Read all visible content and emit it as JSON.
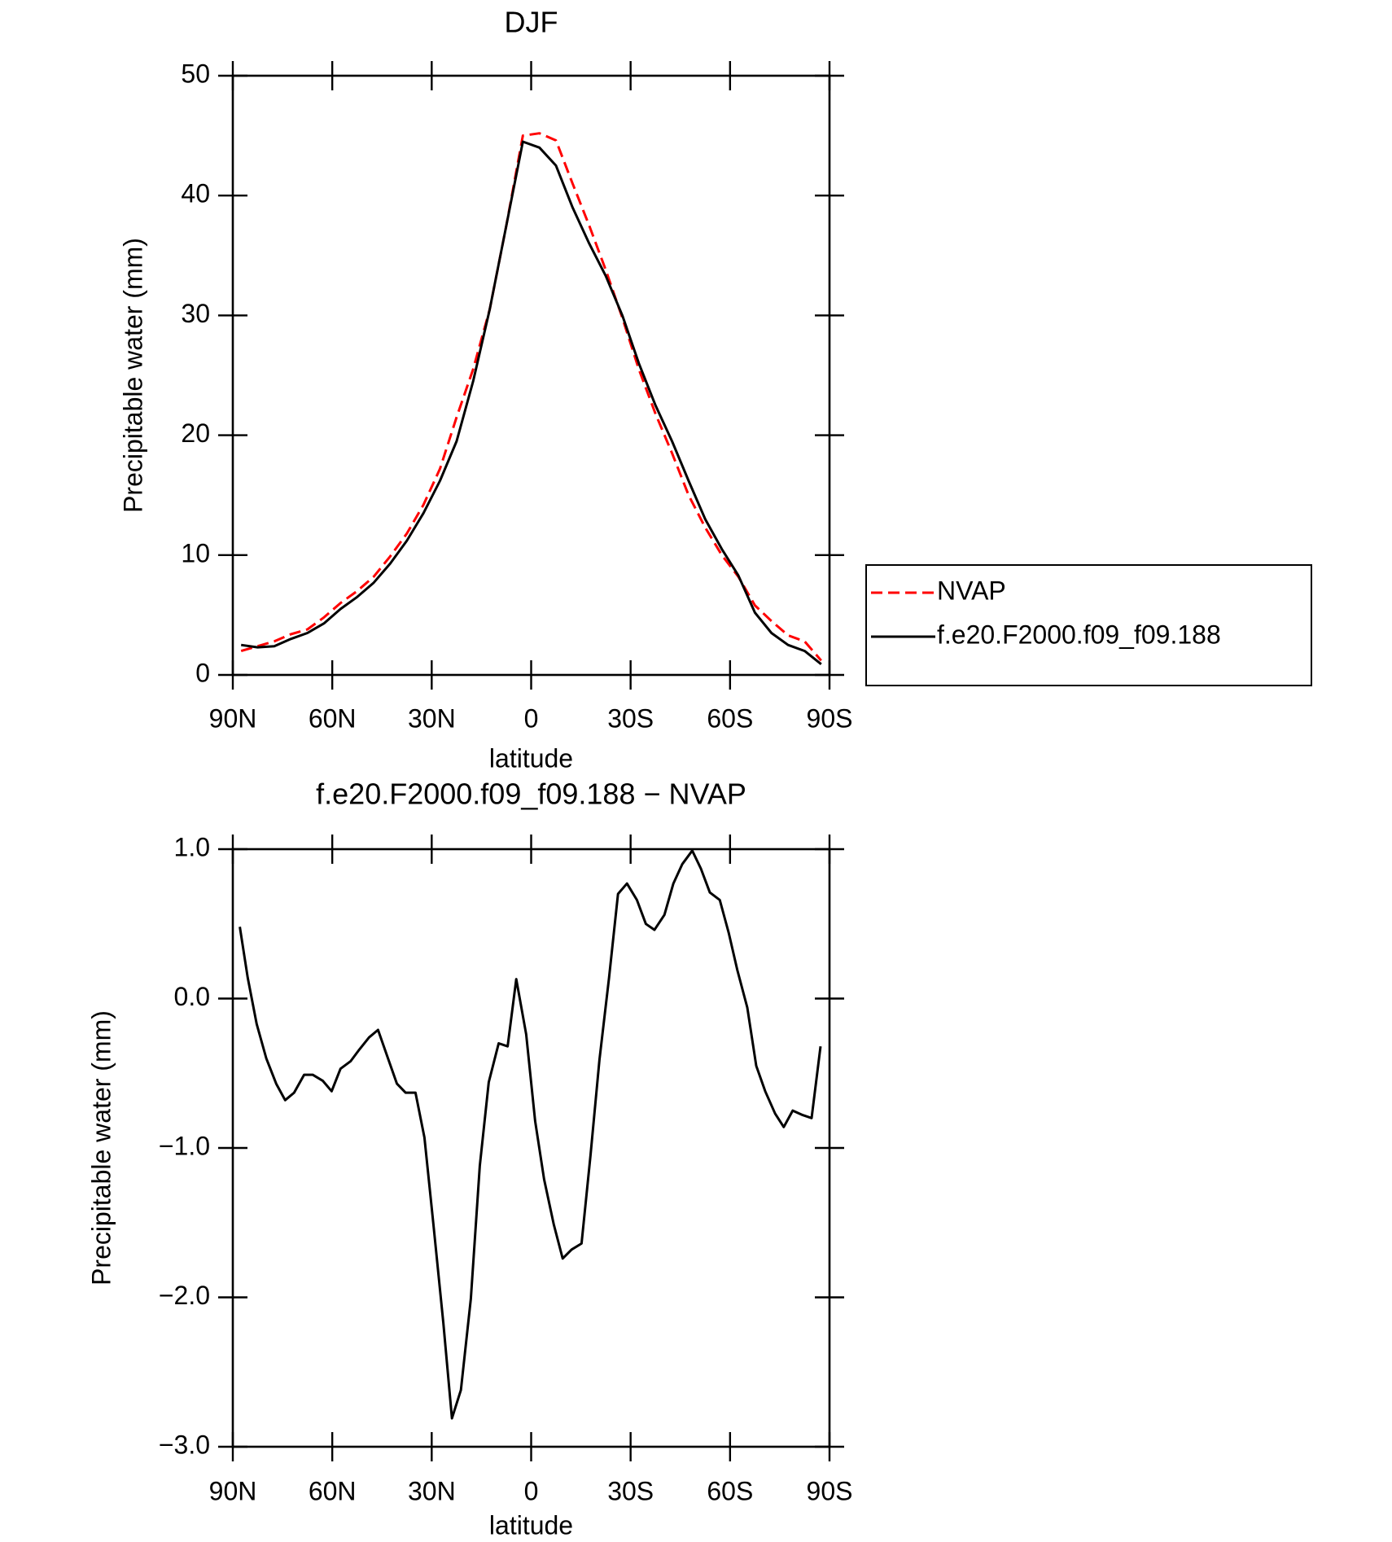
{
  "chart_data": [
    {
      "type": "line",
      "title": "DJF",
      "xlabel": "latitude",
      "ylabel": "Precipitable water (mm)",
      "x": [
        87.5,
        82.5,
        77.5,
        72.5,
        67.5,
        62.5,
        57.5,
        52.5,
        47.5,
        42.5,
        37.5,
        32.5,
        27.5,
        22.5,
        17.5,
        12.5,
        7.5,
        2.5,
        -2.5,
        -7.5,
        -12.5,
        -17.5,
        -22.5,
        -27.5,
        -32.5,
        -37.5,
        -42.5,
        -47.5,
        -52.5,
        -57.5,
        -62.5,
        -67.5,
        -72.5,
        -77.5,
        -82.5,
        -87.5
      ],
      "series": [
        {
          "name": "NVAP",
          "color": "#ff0000",
          "style": "dashed",
          "values": [
            2.0,
            2.4,
            2.8,
            3.4,
            3.8,
            4.8,
            6.0,
            7.0,
            8.2,
            9.9,
            11.8,
            14.2,
            17.2,
            21.5,
            25.5,
            30.5,
            37.5,
            45.0,
            45.2,
            44.6,
            41.0,
            37.5,
            33.8,
            29.8,
            25.5,
            21.8,
            18.5,
            15.0,
            12.3,
            10.0,
            8.2,
            5.8,
            4.5,
            3.3,
            2.8,
            1.2
          ]
        },
        {
          "name": "f.e20.F2000.f09_f09.188",
          "color": "#000000",
          "style": "solid",
          "values": [
            2.5,
            2.3,
            2.4,
            3.0,
            3.5,
            4.3,
            5.5,
            6.5,
            7.7,
            9.3,
            11.2,
            13.5,
            16.2,
            19.5,
            24.5,
            30.5,
            37.5,
            44.5,
            44.0,
            42.5,
            39.0,
            36.0,
            33.3,
            30.0,
            26.0,
            22.5,
            19.5,
            16.2,
            13.0,
            10.5,
            8.3,
            5.2,
            3.5,
            2.5,
            2.0,
            0.9
          ]
        }
      ],
      "xlim": [
        90,
        -90
      ],
      "xticks": [
        {
          "value": 90,
          "label": "90N"
        },
        {
          "value": 60,
          "label": "60N"
        },
        {
          "value": 30,
          "label": "30N"
        },
        0,
        {
          "value": -30,
          "label": "30S"
        },
        {
          "value": -60,
          "label": "60S"
        },
        {
          "value": -90,
          "label": "90S"
        }
      ],
      "ylim": [
        0,
        50
      ],
      "yticks": [
        0,
        10,
        20,
        30,
        40,
        50
      ],
      "legend": "outside-right"
    },
    {
      "type": "line",
      "title": "f.e20.F2000.f09_f09.188 − NVAP",
      "xlabel": "latitude",
      "ylabel": "Precipitable water (mm)",
      "x": [
        87.9,
        85.5,
        82.8,
        79.9,
        76.9,
        74.2,
        71.5,
        68.5,
        65.9,
        62.9,
        60.2,
        57.5,
        54.5,
        51.8,
        48.9,
        46.2,
        43.2,
        40.5,
        37.9,
        34.9,
        32.2,
        29.5,
        26.5,
        23.9,
        21.2,
        18.2,
        15.5,
        12.8,
        9.8,
        7.1,
        4.5,
        1.5,
        -1.2,
        -3.9,
        -6.8,
        -9.5,
        -12.2,
        -15.2,
        -17.9,
        -20.6,
        -23.5,
        -26.2,
        -28.9,
        -31.9,
        -34.6,
        -37.2,
        -40.2,
        -42.9,
        -45.6,
        -48.6,
        -51.2,
        -53.9,
        -56.9,
        -59.6,
        -62.2,
        -65.2,
        -67.9,
        -70.6,
        -73.6,
        -76.2,
        -78.9,
        -81.9,
        -84.6,
        -87.3
      ],
      "values": [
        0.48,
        0.14,
        -0.17,
        -0.4,
        -0.57,
        -0.68,
        -0.63,
        -0.51,
        -0.51,
        -0.55,
        -0.62,
        -0.47,
        -0.42,
        -0.34,
        -0.26,
        -0.21,
        -0.4,
        -0.57,
        -0.63,
        -0.63,
        -0.93,
        -1.51,
        -2.17,
        -2.81,
        -2.62,
        -2.01,
        -1.12,
        -0.56,
        -0.3,
        -0.32,
        0.13,
        -0.24,
        -0.82,
        -1.21,
        -1.51,
        -1.74,
        -1.68,
        -1.64,
        -1.05,
        -0.41,
        0.14,
        0.7,
        0.77,
        0.66,
        0.5,
        0.46,
        0.56,
        0.77,
        0.9,
        0.99,
        0.87,
        0.71,
        0.66,
        0.44,
        0.19,
        -0.06,
        -0.45,
        -0.62,
        -0.77,
        -0.86,
        -0.75,
        -0.78,
        -0.8,
        -0.32
      ],
      "color": "#000000",
      "xlim": [
        90,
        -90
      ],
      "xticks": [
        {
          "value": 90,
          "label": "90N"
        },
        {
          "value": 60,
          "label": "60N"
        },
        {
          "value": 30,
          "label": "30N"
        },
        0,
        {
          "value": -30,
          "label": "30S"
        },
        {
          "value": -60,
          "label": "60S"
        },
        {
          "value": -90,
          "label": "90S"
        }
      ],
      "ylim": [
        -3,
        1
      ],
      "yticks": [
        {
          "value": -3,
          "label": "−3.0"
        },
        {
          "value": -2,
          "label": "−2.0"
        },
        {
          "value": -1,
          "label": "−1.0"
        },
        {
          "value": 0,
          "label": "0.0"
        },
        {
          "value": 1,
          "label": "1.0"
        }
      ]
    }
  ]
}
